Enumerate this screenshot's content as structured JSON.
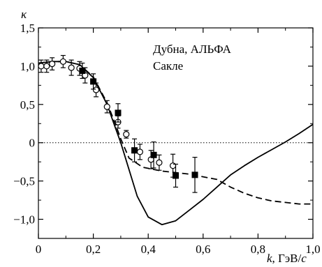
{
  "chart_data": {
    "type": "scatter",
    "ylabel": "κ",
    "xlabel": {
      "var": "k",
      "unit": ", ГэВ/",
      "unit_var": "c"
    },
    "xlim": [
      0,
      1.0
    ],
    "ylim": [
      -1.25,
      1.5
    ],
    "xticks": [
      0,
      0.2,
      0.4,
      0.6,
      0.8,
      1.0
    ],
    "xtick_labels": [
      "0",
      "0,2",
      "0,4",
      "0,6",
      "0,8",
      "1,0"
    ],
    "yticks": [
      -1.0,
      -0.5,
      0,
      0.5,
      1.0,
      1.5
    ],
    "ytick_labels": [
      "−1,0",
      "−0,5",
      "0",
      "0,5",
      "1,0",
      "1,5"
    ],
    "legend_entries": [
      "Дубна, АЛЬФА",
      "Сакле"
    ],
    "legend_position": "top-right",
    "grid": false,
    "reference_line": {
      "y": 0,
      "style": "dotted"
    },
    "series": [
      {
        "marker": "open-circle",
        "points": [
          {
            "x": 0.01,
            "y": 1.0,
            "err": 0.08
          },
          {
            "x": 0.03,
            "y": 1.0,
            "err": 0.08
          },
          {
            "x": 0.05,
            "y": 1.03,
            "err": 0.08
          },
          {
            "x": 0.09,
            "y": 1.06,
            "err": 0.08
          },
          {
            "x": 0.12,
            "y": 0.98,
            "err": 0.1
          },
          {
            "x": 0.15,
            "y": 0.97,
            "err": 0.09
          },
          {
            "x": 0.17,
            "y": 0.88,
            "err": 0.1
          },
          {
            "x": 0.21,
            "y": 0.69,
            "err": 0.09
          },
          {
            "x": 0.25,
            "y": 0.47,
            "err": 0.08
          },
          {
            "x": 0.29,
            "y": 0.27,
            "err": 0.08
          },
          {
            "x": 0.32,
            "y": 0.11,
            "err": 0.05
          },
          {
            "x": 0.37,
            "y": -0.12,
            "err": 0.1
          },
          {
            "x": 0.41,
            "y": -0.22,
            "err": 0.12
          },
          {
            "x": 0.44,
            "y": -0.26,
            "err": 0.1
          },
          {
            "x": 0.49,
            "y": -0.3,
            "err": 0.15
          }
        ]
      },
      {
        "marker": "filled-square",
        "points": [
          {
            "x": 0.16,
            "y": 0.94,
            "err": 0.1
          },
          {
            "x": 0.2,
            "y": 0.8,
            "err": 0.1
          },
          {
            "x": 0.29,
            "y": 0.39,
            "err": 0.12
          },
          {
            "x": 0.35,
            "y": -0.1,
            "err": 0.15
          },
          {
            "x": 0.42,
            "y": -0.16,
            "err": 0.17
          },
          {
            "x": 0.5,
            "y": -0.43,
            "err": 0.15
          },
          {
            "x": 0.57,
            "y": -0.42,
            "err": 0.23
          }
        ]
      },
      {
        "style": "solid-line",
        "points": [
          [
            0,
            1.04
          ],
          [
            0.05,
            1.06
          ],
          [
            0.1,
            1.06
          ],
          [
            0.15,
            1.02
          ],
          [
            0.2,
            0.85
          ],
          [
            0.25,
            0.5
          ],
          [
            0.28,
            0.2
          ],
          [
            0.3,
            0.0
          ],
          [
            0.33,
            -0.35
          ],
          [
            0.36,
            -0.7
          ],
          [
            0.4,
            -0.97
          ],
          [
            0.45,
            -1.07
          ],
          [
            0.5,
            -1.02
          ],
          [
            0.55,
            -0.88
          ],
          [
            0.6,
            -0.74
          ],
          [
            0.65,
            -0.58
          ],
          [
            0.7,
            -0.42
          ],
          [
            0.75,
            -0.3
          ],
          [
            0.8,
            -0.19
          ],
          [
            0.85,
            -0.09
          ],
          [
            0.9,
            0.01
          ],
          [
            0.95,
            0.12
          ],
          [
            1.0,
            0.24
          ]
        ]
      },
      {
        "style": "dashed-line",
        "points": [
          [
            0,
            1.04
          ],
          [
            0.05,
            1.06
          ],
          [
            0.1,
            1.06
          ],
          [
            0.15,
            1.02
          ],
          [
            0.2,
            0.86
          ],
          [
            0.25,
            0.52
          ],
          [
            0.28,
            0.25
          ],
          [
            0.3,
            0.05
          ],
          [
            0.33,
            -0.2
          ],
          [
            0.38,
            -0.32
          ],
          [
            0.45,
            -0.37
          ],
          [
            0.55,
            -0.41
          ],
          [
            0.65,
            -0.48
          ],
          [
            0.7,
            -0.58
          ],
          [
            0.75,
            -0.66
          ],
          [
            0.8,
            -0.72
          ],
          [
            0.85,
            -0.76
          ],
          [
            0.9,
            -0.78
          ],
          [
            0.95,
            -0.8
          ],
          [
            1.0,
            -0.8
          ]
        ]
      }
    ]
  }
}
